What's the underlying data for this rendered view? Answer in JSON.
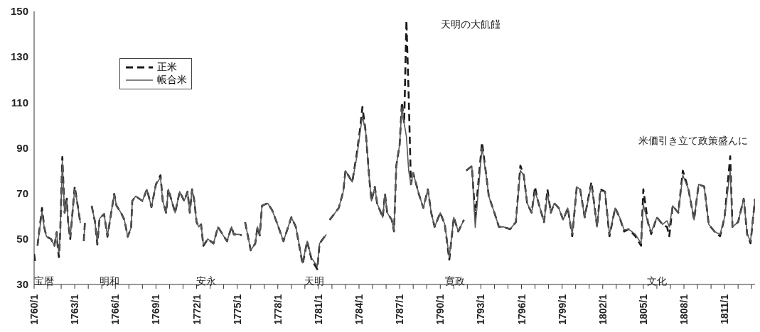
{
  "chart_data": {
    "type": "line",
    "legend": "top left",
    "marker": "none",
    "ylim": [
      30,
      150
    ],
    "yticks": [
      30,
      50,
      70,
      90,
      110,
      130,
      150
    ],
    "xlim": [
      "1760-01",
      "1813-04"
    ],
    "xticks": [
      {
        "value": "1760-01",
        "label": "1760/1"
      },
      {
        "value": "1761-01",
        "label": null
      },
      {
        "value": "1762-01",
        "label": null
      },
      {
        "value": "1763-01",
        "label": "1763/1"
      },
      {
        "value": "1764-01",
        "label": null
      },
      {
        "value": "1765-01",
        "label": null
      },
      {
        "value": "1766-01",
        "label": "1766/1"
      },
      {
        "value": "1767-01",
        "label": null
      },
      {
        "value": "1768-01",
        "label": null
      },
      {
        "value": "1769-01",
        "label": "1769/1"
      },
      {
        "value": "1770-01",
        "label": null
      },
      {
        "value": "1771-01",
        "label": null
      },
      {
        "value": "1772-01",
        "label": "1772/1"
      },
      {
        "value": "1773-01",
        "label": null
      },
      {
        "value": "1774-01",
        "label": null
      },
      {
        "value": "1775-01",
        "label": "1775/1"
      },
      {
        "value": "1776-01",
        "label": null
      },
      {
        "value": "1777-01",
        "label": null
      },
      {
        "value": "1778-01",
        "label": "1778/1"
      },
      {
        "value": "1779-01",
        "label": null
      },
      {
        "value": "1780-01",
        "label": null
      },
      {
        "value": "1781-01",
        "label": "1781/1"
      },
      {
        "value": "1782-01",
        "label": null
      },
      {
        "value": "1783-01",
        "label": null
      },
      {
        "value": "1784-01",
        "label": "1784/1"
      },
      {
        "value": "1785-01",
        "label": null
      },
      {
        "value": "1786-01",
        "label": null
      },
      {
        "value": "1787-01",
        "label": "1787/1"
      },
      {
        "value": "1788-01",
        "label": null
      },
      {
        "value": "1789-01",
        "label": null
      },
      {
        "value": "1790-01",
        "label": "1790/1"
      },
      {
        "value": "1791-01",
        "label": null
      },
      {
        "value": "1792-01",
        "label": null
      },
      {
        "value": "1793-01",
        "label": "1793/1"
      },
      {
        "value": "1794-01",
        "label": null
      },
      {
        "value": "1795-01",
        "label": null
      },
      {
        "value": "1796-01",
        "label": "1796/1"
      },
      {
        "value": "1797-01",
        "label": null
      },
      {
        "value": "1798-01",
        "label": null
      },
      {
        "value": "1799-01",
        "label": "1799/1"
      },
      {
        "value": "1800-01",
        "label": null
      },
      {
        "value": "1801-01",
        "label": null
      },
      {
        "value": "1802-01",
        "label": "1802/1"
      },
      {
        "value": "1803-01",
        "label": null
      },
      {
        "value": "1804-01",
        "label": null
      },
      {
        "value": "1805-01",
        "label": "1805/1"
      },
      {
        "value": "1806-01",
        "label": null
      },
      {
        "value": "1807-01",
        "label": null
      },
      {
        "value": "1808-01",
        "label": "1808/1"
      },
      {
        "value": "1809-01",
        "label": null
      },
      {
        "value": "1810-01",
        "label": null
      },
      {
        "value": "1811-01",
        "label": "1811/1"
      },
      {
        "value": "1812-01",
        "label": null
      },
      {
        "value": "1813-01",
        "label": null
      }
    ],
    "x": [
      "1760-01",
      "1760-02",
      "1760-03",
      "1760-04",
      "1760-08",
      "1760-10",
      "1760-12",
      "1761-04",
      "1761-07",
      "1761-09",
      "1761-10",
      "1761-11",
      "1761-12",
      "1762-02",
      "1762-04",
      "1762-06",
      "1762-07",
      "1762-09",
      "1762-11",
      "1763-01",
      "1763-03",
      "1763-06",
      "1763-08",
      "1763-09",
      "1763-10",
      "1764-01",
      "1764-04",
      "1764-07",
      "1764-09",
      "1764-11",
      "1765-03",
      "1765-06",
      "1765-09",
      "1765-12",
      "1766-02",
      "1766-06",
      "1766-09",
      "1766-12",
      "1767-03",
      "1767-04",
      "1767-07",
      "1768-01",
      "1768-05",
      "1768-09",
      "1769-01",
      "1769-05",
      "1769-07",
      "1769-10",
      "1769-12",
      "1770-06",
      "1770-10",
      "1771-02",
      "1771-05",
      "1771-07",
      "1771-09",
      "1771-11",
      "1772-01",
      "1772-03",
      "1772-05",
      "1772-07",
      "1772-11",
      "1773-04",
      "1773-08",
      "1773-12",
      "1774-04",
      "1774-08",
      "1774-10",
      "1774-12",
      "1775-03",
      "1775-05",
      "1775-06",
      "1775-08",
      "1776-01",
      "1776-05",
      "1776-07",
      "1776-09",
      "1776-11",
      "1777-04",
      "1777-08",
      "1777-12",
      "1778-06",
      "1779-01",
      "1779-05",
      "1779-11",
      "1780-03",
      "1780-07",
      "1780-12",
      "1781-02",
      "1781-08",
      "1781-10",
      "1781-11",
      "1782-07",
      "1782-11",
      "1783-01",
      "1783-07",
      "1783-11",
      "1784-02",
      "1784-04",
      "1784-07",
      "1784-10",
      "1784-12",
      "1785-03",
      "1785-05",
      "1785-10",
      "1785-12",
      "1786-02",
      "1786-06",
      "1786-08",
      "1786-10",
      "1787-01",
      "1787-03",
      "1787-05",
      "1787-07",
      "1787-09",
      "1787-11",
      "1788-01",
      "1788-06",
      "1788-10",
      "1789-02",
      "1789-05",
      "1789-08",
      "1790-01",
      "1790-05",
      "1790-09",
      "1791-01",
      "1791-05",
      "1791-10",
      "1791-11",
      "1791-12",
      "1792-05",
      "1792-08",
      "1793-02",
      "1793-06",
      "1793-08",
      "1794-01",
      "1794-05",
      "1794-09",
      "1795-03",
      "1795-08",
      "1795-12",
      "1796-03",
      "1796-06",
      "1796-10",
      "1797-01",
      "1797-03",
      "1797-09",
      "1797-12",
      "1798-03",
      "1798-06",
      "1798-10",
      "1799-02",
      "1799-06",
      "1799-10",
      "1800-02",
      "1800-05",
      "1800-09",
      "1801-03",
      "1801-08",
      "1801-11",
      "1802-03",
      "1802-07",
      "1802-12",
      "1803-04",
      "1803-08",
      "1803-12",
      "1804-06",
      "1804-11",
      "1805-01",
      "1805-05",
      "1805-08",
      "1806-01",
      "1806-06",
      "1806-10",
      "1806-12",
      "1807-03",
      "1807-08",
      "1807-12",
      "1808-05",
      "1808-10",
      "1809-02",
      "1809-07",
      "1809-11",
      "1810-04",
      "1810-09",
      "1811-01",
      "1811-06",
      "1811-08",
      "1812-01",
      "1812-06",
      "1812-09",
      "1812-12",
      "1813-04"
    ],
    "series": [
      {
        "name": "正米",
        "color": "#1a1a1a",
        "line_style": "dashed",
        "values": [
          43.4,
          39.3,
          null,
          47,
          63.6,
          55,
          51,
          50,
          47,
          53,
          46,
          42,
          51,
          86,
          61.5,
          67.7,
          58,
          50,
          61.5,
          73,
          66.7,
          57,
          null,
          49,
          57,
          null,
          64.6,
          57.4,
          47.6,
          59,
          61,
          51,
          60.5,
          69.8,
          64.6,
          61.5,
          58.4,
          51,
          55,
          66.7,
          68.8,
          66.7,
          71.8,
          64,
          74,
          78,
          66.7,
          61.5,
          71.8,
          61.5,
          70.8,
          66.7,
          70.8,
          61.5,
          71.8,
          66.7,
          57.4,
          55.3,
          56.4,
          47,
          50,
          48,
          55.3,
          52,
          49,
          55.3,
          52,
          52,
          52,
          51.5,
          null,
          57.4,
          45,
          48,
          55.3,
          51.5,
          64.6,
          65.7,
          62.6,
          57.4,
          49,
          59.5,
          55.3,
          38.8,
          49,
          40.9,
          36.7,
          48,
          52,
          null,
          58.4,
          63.6,
          70.8,
          80,
          75,
          87.4,
          98.7,
          108,
          96.7,
          77,
          66.7,
          72.9,
          65.7,
          59.5,
          69.8,
          61.5,
          58.4,
          53.3,
          82,
          91.5,
          110,
          100.8,
          146,
          113,
          74,
          79,
          69.8,
          63.6,
          71.8,
          61.5,
          55.3,
          61.5,
          56.4,
          40.9,
          59.5,
          53.3,
          58.4,
          null,
          80,
          82,
          59.5,
          92.5,
          77,
          68.8,
          61.5,
          55.3,
          55.3,
          54.3,
          57.4,
          82.2,
          78,
          65.7,
          61.5,
          72.9,
          67.7,
          57.4,
          71.8,
          61.5,
          65.7,
          63.6,
          58.4,
          63.6,
          51.2,
          72.9,
          71.8,
          59.5,
          75,
          55.3,
          71.8,
          70.8,
          51.2,
          63.6,
          59.5,
          53.3,
          54.3,
          51.2,
          47,
          71.8,
          57.4,
          52.2,
          59.5,
          56.4,
          55.3,
          51.2,
          64.6,
          61.5,
          80,
          71.8,
          58.4,
          74,
          73,
          56.4,
          53.3,
          51.2,
          59.5,
          86.3,
          55.3,
          57.4,
          67.7,
          52.2,
          48.1,
          67.7
        ]
      },
      {
        "name": "帳合米",
        "color": "#5a5a5a",
        "line_style": "solid",
        "values": [
          null,
          null,
          null,
          47,
          62,
          55,
          51,
          50,
          47,
          53,
          47,
          44,
          51,
          84,
          61.5,
          67,
          58,
          51,
          61.5,
          72,
          66.7,
          57,
          null,
          49,
          57,
          null,
          64.6,
          57.4,
          48,
          59,
          61,
          51.5,
          60.5,
          69.8,
          64.6,
          61.5,
          58.4,
          51,
          55,
          66.7,
          68.8,
          66.7,
          71.8,
          64,
          74,
          77,
          66.7,
          61.5,
          71.8,
          61.5,
          70.8,
          66.7,
          70.8,
          61.5,
          71.8,
          66.7,
          57.4,
          55.3,
          56.4,
          47.5,
          50,
          48,
          55.3,
          52,
          49,
          55.3,
          52,
          52,
          52,
          51.5,
          null,
          57.4,
          45,
          48,
          55.3,
          51.5,
          64.6,
          65.7,
          62.6,
          57.4,
          49,
          59.5,
          55.3,
          39.5,
          49,
          41.5,
          38,
          48,
          52,
          null,
          58.4,
          63.6,
          70.8,
          80,
          75,
          86,
          97,
          104,
          96.7,
          77,
          66.7,
          72.9,
          65.7,
          59.5,
          69.8,
          61.5,
          58.4,
          53.3,
          82,
          91.5,
          108,
          100.8,
          95,
          80,
          74,
          79,
          69.8,
          63.6,
          71.8,
          61.5,
          55.3,
          61.5,
          56.4,
          42,
          59.5,
          53.3,
          58.4,
          null,
          80,
          82,
          55,
          90,
          77,
          68.8,
          61.5,
          55.3,
          55.3,
          54.3,
          57.4,
          80,
          78,
          65.7,
          61.5,
          71,
          67.7,
          57.4,
          70,
          61.5,
          65.7,
          63.6,
          58.4,
          63.6,
          52,
          72.9,
          71.8,
          59.5,
          74,
          55.3,
          71,
          70.8,
          52,
          63.6,
          59.5,
          54,
          54.3,
          52,
          48,
          65,
          57.4,
          53,
          59.5,
          56.4,
          58,
          55.3,
          64.6,
          61.5,
          78,
          71.8,
          58.4,
          74,
          73,
          56.4,
          53.3,
          52,
          59.5,
          80,
          55.3,
          57.4,
          67.7,
          52.2,
          49,
          67.7
        ]
      }
    ],
    "annotations": [
      "天明の大飢饉",
      "米価引き立て政策盛んに",
      "宝暦",
      "明和",
      "安永",
      "天明",
      "寛政",
      "文化"
    ]
  }
}
